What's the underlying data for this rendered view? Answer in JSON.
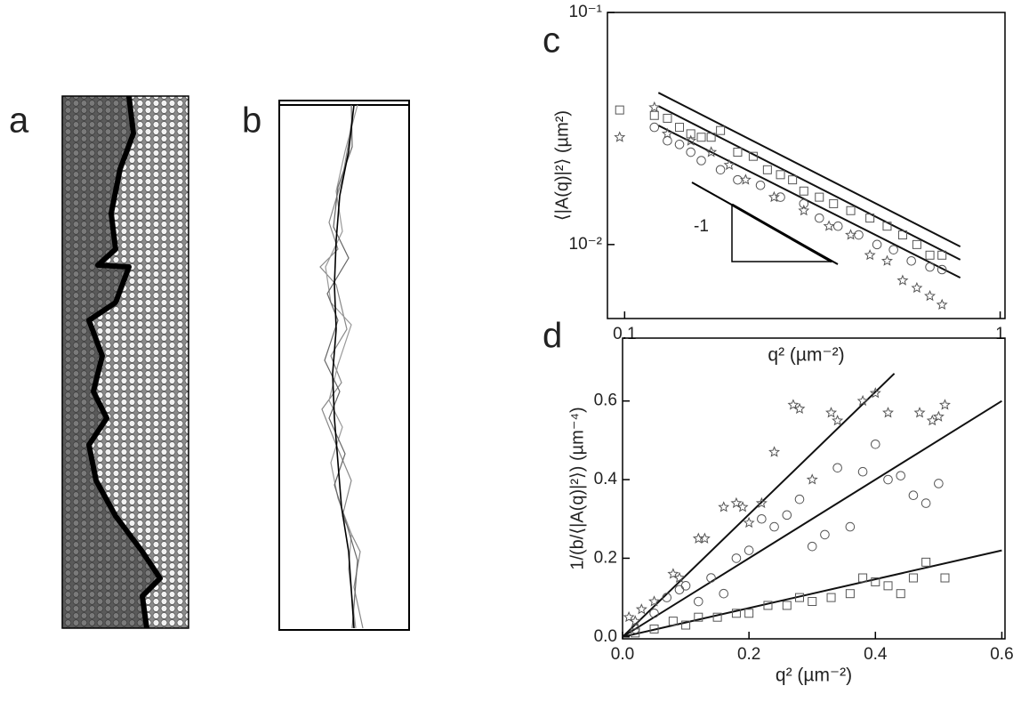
{
  "panel_labels": {
    "a": "a",
    "b": "b"
  },
  "chart_data": [
    {
      "type": "scatter",
      "panel": "c",
      "log": true,
      "x_label": "q² (µm⁻²)",
      "y_label": "⟨|A(q)|²⟩ (µm²)",
      "annotation": "-1",
      "xlim": [
        0.09,
        1.03
      ],
      "ylim": [
        0.0048,
        0.1
      ],
      "xticks": [
        0.1,
        1
      ],
      "yticks": [
        {
          "value": 0.1,
          "label": "10⁻¹"
        },
        {
          "value": 0.01,
          "label": "10⁻²"
        }
      ],
      "series": [
        {
          "marker": "square",
          "color": "#555555",
          "x": [
            0.097,
            0.12,
            0.13,
            0.14,
            0.15,
            0.16,
            0.17,
            0.18,
            0.2,
            0.22,
            0.24,
            0.26,
            0.28,
            0.3,
            0.33,
            0.36,
            0.4,
            0.45,
            0.5,
            0.55,
            0.6,
            0.65,
            0.7
          ],
          "values": [
            0.038,
            0.036,
            0.035,
            0.032,
            0.03,
            0.029,
            0.029,
            0.031,
            0.025,
            0.024,
            0.021,
            0.02,
            0.019,
            0.017,
            0.016,
            0.015,
            0.014,
            0.013,
            0.012,
            0.011,
            0.01,
            0.009,
            0.009
          ]
        },
        {
          "marker": "circle",
          "color": "#555555",
          "x": [
            0.12,
            0.13,
            0.14,
            0.15,
            0.16,
            0.18,
            0.2,
            0.23,
            0.26,
            0.3,
            0.33,
            0.37,
            0.42,
            0.47,
            0.52,
            0.58,
            0.65,
            0.7
          ],
          "values": [
            0.032,
            0.028,
            0.027,
            0.025,
            0.023,
            0.021,
            0.019,
            0.018,
            0.016,
            0.015,
            0.013,
            0.012,
            0.011,
            0.01,
            0.0095,
            0.0085,
            0.008,
            0.0078
          ]
        },
        {
          "marker": "star",
          "color": "#555555",
          "x": [
            0.097,
            0.12,
            0.13,
            0.15,
            0.17,
            0.19,
            0.21,
            0.25,
            0.3,
            0.35,
            0.4,
            0.45,
            0.5,
            0.55,
            0.6,
            0.65,
            0.7
          ],
          "values": [
            0.029,
            0.039,
            0.03,
            0.028,
            0.025,
            0.022,
            0.019,
            0.016,
            0.014,
            0.012,
            0.011,
            0.009,
            0.0085,
            0.007,
            0.0065,
            0.006,
            0.0055
          ]
        }
      ],
      "fits": [
        {
          "color": "#111111",
          "x": [
            0.123,
            0.783
          ],
          "values": [
            0.0451,
            0.0098
          ]
        },
        {
          "color": "#111111",
          "x": [
            0.123,
            0.783
          ],
          "values": [
            0.0395,
            0.0086
          ]
        },
        {
          "color": "#111111",
          "x": [
            0.123,
            0.783
          ],
          "values": [
            0.0326,
            0.0072
          ]
        }
      ]
    },
    {
      "type": "scatter",
      "panel": "d",
      "log": false,
      "x_label": "q² (µm⁻²)",
      "y_label": "1/(b/⟨|A(q)|²⟩) (µm⁻⁴)",
      "xlim": [
        0,
        0.605
      ],
      "ylim": [
        -0.005,
        0.76
      ],
      "xticks": [
        {
          "value": 0,
          "label": "0.0"
        },
        0.2,
        0.4,
        0.6
      ],
      "yticks": [
        {
          "value": 0,
          "label": "0.0"
        },
        0.2,
        0.4,
        0.6
      ],
      "series": [
        {
          "marker": "star",
          "color": "#555555",
          "x": [
            0.01,
            0.02,
            0.03,
            0.05,
            0.08,
            0.09,
            0.12,
            0.13,
            0.16,
            0.18,
            0.19,
            0.2,
            0.22,
            0.24,
            0.27,
            0.28,
            0.3,
            0.33,
            0.34,
            0.38,
            0.4,
            0.42,
            0.47,
            0.49,
            0.51,
            0.5
          ],
          "values": [
            0.05,
            0.04,
            0.07,
            0.09,
            0.16,
            0.15,
            0.25,
            0.25,
            0.33,
            0.34,
            0.33,
            0.29,
            0.34,
            0.47,
            0.59,
            0.58,
            0.4,
            0.57,
            0.55,
            0.6,
            0.62,
            0.57,
            0.57,
            0.55,
            0.59,
            0.56
          ]
        },
        {
          "marker": "circle",
          "color": "#555555",
          "x": [
            0.02,
            0.05,
            0.07,
            0.09,
            0.1,
            0.12,
            0.14,
            0.16,
            0.18,
            0.2,
            0.22,
            0.24,
            0.26,
            0.28,
            0.3,
            0.32,
            0.34,
            0.36,
            0.38,
            0.4,
            0.42,
            0.44,
            0.46,
            0.48,
            0.5
          ],
          "values": [
            0.02,
            0.06,
            0.1,
            0.12,
            0.13,
            0.09,
            0.15,
            0.11,
            0.2,
            0.22,
            0.3,
            0.28,
            0.31,
            0.35,
            0.23,
            0.26,
            0.43,
            0.28,
            0.42,
            0.49,
            0.4,
            0.41,
            0.36,
            0.34,
            0.39
          ]
        },
        {
          "marker": "square",
          "color": "#555555",
          "x": [
            0.02,
            0.05,
            0.08,
            0.1,
            0.12,
            0.15,
            0.18,
            0.2,
            0.23,
            0.26,
            0.28,
            0.3,
            0.33,
            0.36,
            0.38,
            0.4,
            0.42,
            0.44,
            0.46,
            0.48,
            0.51
          ],
          "values": [
            0.01,
            0.02,
            0.04,
            0.03,
            0.05,
            0.05,
            0.06,
            0.06,
            0.08,
            0.08,
            0.1,
            0.09,
            0.1,
            0.11,
            0.15,
            0.14,
            0.13,
            0.11,
            0.15,
            0.19,
            0.15
          ]
        }
      ],
      "fits": [
        {
          "color": "#111111",
          "x": [
            0,
            0.43
          ],
          "values": [
            0,
            0.67
          ]
        },
        {
          "color": "#111111",
          "x": [
            0,
            0.6
          ],
          "values": [
            0,
            0.6
          ]
        },
        {
          "color": "#111111",
          "x": [
            0,
            0.6
          ],
          "values": [
            0,
            0.22
          ]
        }
      ]
    }
  ]
}
